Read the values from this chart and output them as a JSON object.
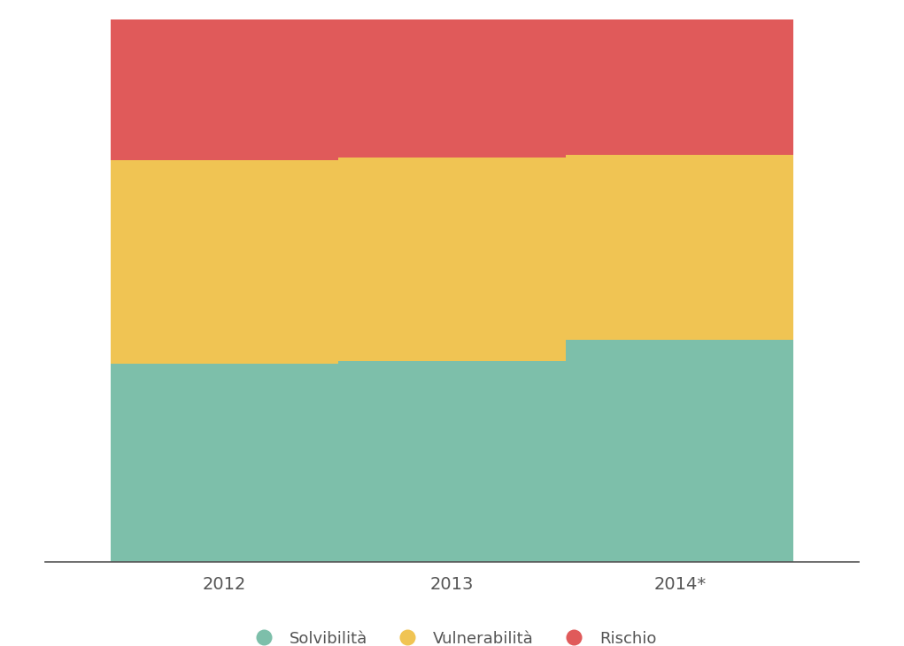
{
  "categories": [
    "2012",
    "2013",
    "2014*"
  ],
  "solvibilita": [
    36.5,
    37.0,
    41.0
  ],
  "vulnerabilita": [
    37.5,
    37.5,
    34.0
  ],
  "rischio": [
    26.0,
    25.5,
    25.0
  ],
  "color_solvibilita": "#7dbfaa",
  "color_vulnerabilita": "#f0c453",
  "color_rischio": "#e05a5a",
  "background_color": "#ffffff",
  "legend_labels": [
    "Solvibilità",
    "Vulnerabilità",
    "Rischio"
  ],
  "bar_width": 0.28,
  "ylim": [
    0,
    100
  ],
  "x_positions": [
    0.22,
    0.5,
    0.78
  ],
  "xlim": [
    0.0,
    1.0
  ],
  "tick_fontsize": 14,
  "legend_fontsize": 13,
  "legend_marker_size": 14
}
